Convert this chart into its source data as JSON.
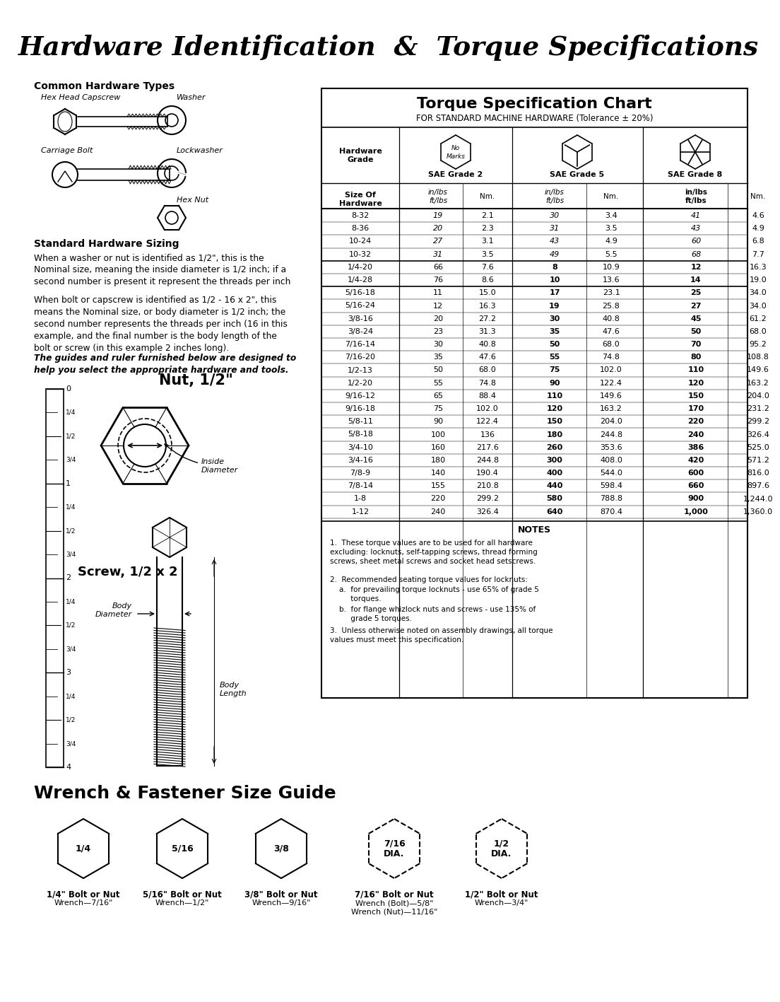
{
  "title": "Hardware Identification  &  Torque Specifications",
  "bg_color": "#ffffff",
  "torque_title": "Torque Specification Chart",
  "torque_subtitle": "FOR STANDARD MACHINE HARDWARE (Tolerance ± 20%)",
  "table_data": [
    [
      "8-32",
      "19",
      "2.1",
      "30",
      "3.4",
      "41",
      "4.6"
    ],
    [
      "8-36",
      "20",
      "2.3",
      "31",
      "3.5",
      "43",
      "4.9"
    ],
    [
      "10-24",
      "27",
      "3.1",
      "43",
      "4.9",
      "60",
      "6.8"
    ],
    [
      "10-32",
      "31",
      "3.5",
      "49",
      "5.5",
      "68",
      "7.7"
    ],
    [
      "1/4-20",
      "66",
      "7.6",
      "8",
      "10.9",
      "12",
      "16.3"
    ],
    [
      "1/4-28",
      "76",
      "8.6",
      "10",
      "13.6",
      "14",
      "19.0"
    ],
    [
      "5/16-18",
      "11",
      "15.0",
      "17",
      "23.1",
      "25",
      "34.0"
    ],
    [
      "5/16-24",
      "12",
      "16.3",
      "19",
      "25.8",
      "27",
      "34.0"
    ],
    [
      "3/8-16",
      "20",
      "27.2",
      "30",
      "40.8",
      "45",
      "61.2"
    ],
    [
      "3/8-24",
      "23",
      "31.3",
      "35",
      "47.6",
      "50",
      "68.0"
    ],
    [
      "7/16-14",
      "30",
      "40.8",
      "50",
      "68.0",
      "70",
      "95.2"
    ],
    [
      "7/16-20",
      "35",
      "47.6",
      "55",
      "74.8",
      "80",
      "108.8"
    ],
    [
      "1/2-13",
      "50",
      "68.0",
      "75",
      "102.0",
      "110",
      "149.6"
    ],
    [
      "1/2-20",
      "55",
      "74.8",
      "90",
      "122.4",
      "120",
      "163.2"
    ],
    [
      "9/16-12",
      "65",
      "88.4",
      "110",
      "149.6",
      "150",
      "204.0"
    ],
    [
      "9/16-18",
      "75",
      "102.0",
      "120",
      "163.2",
      "170",
      "231.2"
    ],
    [
      "5/8-11",
      "90",
      "122.4",
      "150",
      "204.0",
      "220",
      "299.2"
    ],
    [
      "5/8-18",
      "100",
      "136",
      "180",
      "244.8",
      "240",
      "326.4"
    ],
    [
      "3/4-10",
      "160",
      "217.6",
      "260",
      "353.6",
      "386",
      "525.0"
    ],
    [
      "3/4-16",
      "180",
      "244.8",
      "300",
      "408.0",
      "420",
      "571.2"
    ],
    [
      "7/8-9",
      "140",
      "190.4",
      "400",
      "544.0",
      "600",
      "816.0"
    ],
    [
      "7/8-14",
      "155",
      "210.8",
      "440",
      "598.4",
      "660",
      "897.6"
    ],
    [
      "1-8",
      "220",
      "299.2",
      "580",
      "788.8",
      "900",
      "1,244.0"
    ],
    [
      "1-12",
      "240",
      "326.4",
      "640",
      "870.4",
      "1,000",
      "1,360.0"
    ]
  ],
  "notes_title": "NOTES",
  "note1": "These torque values are to be used for all hardware\nexcluding: locknuts, self-tapping screws, thread forming\nscrews, sheet metal screws and socket head setscrews.",
  "note2a": "Recommended seating torque values for locknuts:",
  "note2b": "a.  for prevailing torque locknuts - use 65% of grade 5\n     torques.",
  "note2c": "b.  for flange whizlock nuts and screws - use 135% of\n     grade 5 torques.",
  "note3": "Unless otherwise noted on assembly drawings, all torque\nvalues must meet this specification.",
  "wrench_title": "Wrench & Fastener Size Guide",
  "wrench_items": [
    {
      "label": "1/4",
      "sub1": "1/4\" Bolt or Nut",
      "sub2": "Wrench—7/16\"",
      "dashed": false
    },
    {
      "label": "5/16",
      "sub1": "5/16\" Bolt or Nut",
      "sub2": "Wrench—1/2\"",
      "dashed": false
    },
    {
      "label": "3/8",
      "sub1": "3/8\" Bolt or Nut",
      "sub2": "Wrench—9/16\"",
      "dashed": false
    },
    {
      "label": "7/16\nDIA.",
      "sub1": "7/16\" Bolt or Nut",
      "sub2": "Wrench (Bolt)—5/8\"\nWrench (Nut)—11/16\"",
      "dashed": true
    },
    {
      "label": "1/2\nDIA.",
      "sub1": "1/2\" Bolt or Nut",
      "sub2": "Wrench—3/4\"",
      "dashed": true
    }
  ]
}
